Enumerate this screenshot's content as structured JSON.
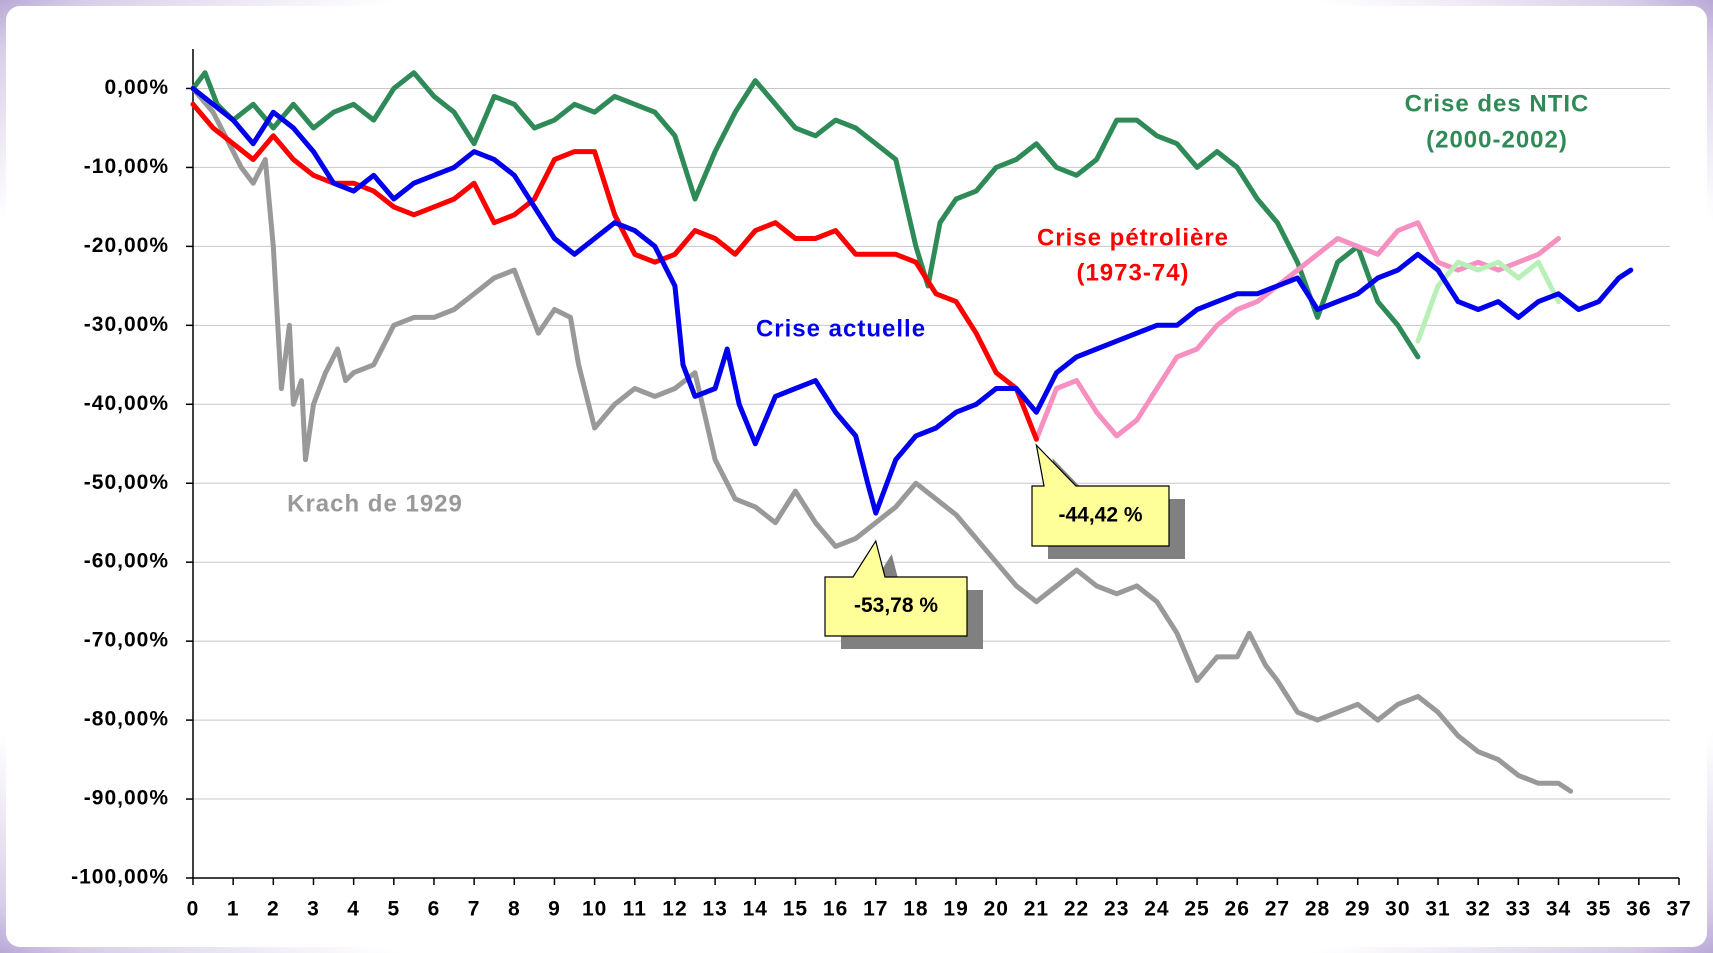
{
  "chart_data": {
    "type": "line",
    "xlim": [
      0,
      37
    ],
    "xticks": [
      0,
      1,
      2,
      3,
      4,
      5,
      6,
      7,
      8,
      9,
      10,
      11,
      12,
      13,
      14,
      15,
      16,
      17,
      18,
      19,
      20,
      21,
      22,
      23,
      24,
      25,
      26,
      27,
      28,
      29,
      30,
      31,
      32,
      33,
      34,
      35,
      36,
      37
    ],
    "ylim": [
      -100,
      5
    ],
    "yticks": [
      {
        "value": 0,
        "label": "0,00%"
      },
      {
        "value": -10,
        "label": "-10,00%"
      },
      {
        "value": -20,
        "label": "-20,00%"
      },
      {
        "value": -30,
        "label": "-30,00%"
      },
      {
        "value": -40,
        "label": "-40,00%"
      },
      {
        "value": -50,
        "label": "-50,00%"
      },
      {
        "value": -60,
        "label": "-60,00%"
      },
      {
        "value": -70,
        "label": "-70,00%"
      },
      {
        "value": -80,
        "label": "-80,00%"
      },
      {
        "value": -90,
        "label": "-90,00%"
      },
      {
        "value": -100,
        "label": "-100,00%"
      }
    ],
    "grid": true,
    "series": [
      {
        "name": "Krach de 1929",
        "color": "#999999",
        "x": [
          0,
          0.5,
          1,
          1.2,
          1.5,
          1.8,
          2,
          2.2,
          2.4,
          2.5,
          2.7,
          2.8,
          3,
          3.3,
          3.6,
          3.8,
          4,
          4.5,
          5,
          5.5,
          6,
          6.5,
          7,
          7.5,
          8,
          8.3,
          8.6,
          9,
          9.4,
          9.6,
          10,
          10.5,
          11,
          11.5,
          12,
          12.5,
          13,
          13.5,
          14,
          14.5,
          15,
          15.5,
          16,
          16.5,
          17,
          17.5,
          18,
          18.5,
          19,
          19.5,
          20,
          20.5,
          21,
          21.5,
          22,
          22.5,
          23,
          23.5,
          24,
          24.5,
          25,
          25.5,
          26,
          26.3,
          26.7,
          27,
          27.5,
          28,
          28.5,
          29,
          29.5,
          30,
          30.5,
          31,
          31.5,
          32,
          32.5,
          33,
          33.5,
          34,
          34.3
        ],
        "values": [
          0,
          -3,
          -8,
          -10,
          -12,
          -9,
          -20,
          -38,
          -30,
          -40,
          -37,
          -47,
          -40,
          -36,
          -33,
          -37,
          -36,
          -35,
          -30,
          -29,
          -29,
          -28,
          -26,
          -24,
          -23,
          -27,
          -31,
          -28,
          -29,
          -35,
          -43,
          -40,
          -38,
          -39,
          -38,
          -36,
          -47,
          -52,
          -53,
          -55,
          -51,
          -55,
          -58,
          -57,
          -55,
          -53,
          -50,
          -52,
          -54,
          -57,
          -60,
          -63,
          -65,
          -63,
          -61,
          -63,
          -64,
          -63,
          -65,
          -69,
          -75,
          -72,
          -72,
          -69,
          -73,
          -75,
          -79,
          -80,
          -79,
          -78,
          -80,
          -78,
          -77,
          -79,
          -82,
          -84,
          -85,
          -87,
          -88,
          -88,
          -89
        ]
      },
      {
        "name": [
          "Crise des NTIC",
          "(2000-2002)"
        ],
        "color": "#2e8b57",
        "x": [
          0,
          0.3,
          0.6,
          1,
          1.5,
          2,
          2.5,
          3,
          3.5,
          4,
          4.5,
          5,
          5.5,
          6,
          6.5,
          7,
          7.5,
          8,
          8.5,
          9,
          9.5,
          10,
          10.5,
          11,
          11.5,
          12,
          12.5,
          13,
          13.5,
          14,
          14.5,
          15,
          15.5,
          16,
          16.5,
          17,
          17.5,
          18,
          18.3,
          18.6,
          19,
          19.5,
          20,
          20.5,
          21,
          21.5,
          22,
          22.5,
          23,
          23.5,
          24,
          24.5,
          25,
          25.5,
          26,
          26.5,
          27,
          27.5,
          28,
          28.5,
          29,
          29.5,
          30,
          30.5
        ],
        "values": [
          0,
          2,
          -2,
          -4,
          -2,
          -5,
          -2,
          -5,
          -3,
          -2,
          -4,
          0,
          2,
          -1,
          -3,
          -7,
          -1,
          -2,
          -5,
          -4,
          -2,
          -3,
          -1,
          -2,
          -3,
          -6,
          -14,
          -8,
          -3,
          1,
          -2,
          -5,
          -6,
          -4,
          -5,
          -7,
          -9,
          -20,
          -25,
          -17,
          -14,
          -13,
          -10,
          -9,
          -7,
          -10,
          -11,
          -9,
          -4,
          -4,
          -6,
          -7,
          -10,
          -8,
          -10,
          -14,
          -17,
          -22,
          -29,
          -22,
          -20,
          -27,
          -30,
          -34
        ]
      },
      {
        "color": "#f590c0",
        "x": [
          21,
          21.5,
          22,
          22.5,
          23,
          23.5,
          24,
          24.5,
          25,
          25.5,
          26,
          26.5,
          27,
          27.5,
          28,
          28.5,
          29,
          29.5,
          30,
          30.5,
          31,
          31.5,
          32,
          32.5,
          33,
          33.5,
          34
        ],
        "values": [
          -44.42,
          -38,
          -37,
          -41,
          -44,
          -42,
          -38,
          -34,
          -33,
          -30,
          -28,
          -27,
          -25,
          -23,
          -21,
          -19,
          -20,
          -21,
          -18,
          -17,
          -22,
          -23,
          -22,
          -23,
          -22,
          -21,
          -19
        ]
      },
      {
        "color": "#b8f0b8",
        "x": [
          30.5,
          31,
          31.5,
          32,
          32.5,
          33,
          33.5,
          34
        ],
        "values": [
          -32,
          -25,
          -22,
          -23,
          -22,
          -24,
          -22,
          -27
        ]
      },
      {
        "name": [
          "Crise pétrolière",
          "(1973-74)"
        ],
        "color": "#ff0000",
        "x": [
          0,
          0.5,
          1,
          1.5,
          2,
          2.5,
          3,
          3.5,
          4,
          4.5,
          5,
          5.5,
          6,
          6.5,
          7,
          7.5,
          8,
          8.5,
          9,
          9.5,
          10,
          10.5,
          11,
          11.5,
          12,
          12.5,
          13,
          13.5,
          14,
          14.5,
          15,
          15.5,
          16,
          16.5,
          17,
          17.5,
          18,
          18.5,
          19,
          19.5,
          20,
          20.5,
          21
        ],
        "values": [
          -2,
          -5,
          -7,
          -9,
          -6,
          -9,
          -11,
          -12,
          -12,
          -13,
          -15,
          -16,
          -15,
          -14,
          -12,
          -17,
          -16,
          -14,
          -9,
          -8,
          -8,
          -16,
          -21,
          -22,
          -21,
          -18,
          -19,
          -21,
          -18,
          -17,
          -19,
          -19,
          -18,
          -21,
          -21,
          -21,
          -22,
          -26,
          -27,
          -31,
          -36,
          -38,
          -44.42
        ]
      },
      {
        "name": "Crise actuelle",
        "color": "#0000ee",
        "x": [
          0,
          0.5,
          1,
          1.5,
          2,
          2.5,
          3,
          3.5,
          4,
          4.5,
          5,
          5.5,
          6,
          6.5,
          7,
          7.5,
          8,
          8.5,
          9,
          9.5,
          10,
          10.5,
          11,
          11.5,
          12,
          12.2,
          12.5,
          13,
          13.3,
          13.6,
          14,
          14.5,
          15,
          15.5,
          16,
          16.5,
          16.8,
          17,
          17.5,
          18,
          18.5,
          19,
          19.5,
          20,
          20.5,
          21,
          21.5,
          22,
          22.5,
          23,
          23.5,
          24,
          24.5,
          25,
          25.5,
          26,
          26.5,
          27,
          27.5,
          28,
          28.5,
          29,
          29.5,
          30,
          30.5,
          31,
          31.5,
          32,
          32.5,
          33,
          33.5,
          34,
          34.5,
          35,
          35.5,
          35.8
        ],
        "values": [
          0,
          -2,
          -4,
          -7,
          -3,
          -5,
          -8,
          -12,
          -13,
          -11,
          -14,
          -12,
          -11,
          -10,
          -8,
          -9,
          -11,
          -15,
          -19,
          -21,
          -19,
          -17,
          -18,
          -20,
          -25,
          -35,
          -39,
          -38,
          -33,
          -40,
          -45,
          -39,
          -38,
          -37,
          -41,
          -44,
          -50,
          -53.78,
          -47,
          -44,
          -43,
          -41,
          -40,
          -38,
          -38,
          -41,
          -36,
          -34,
          -33,
          -32,
          -31,
          -30,
          -30,
          -28,
          -27,
          -26,
          -26,
          -25,
          -24,
          -28,
          -27,
          -26,
          -24,
          -23,
          -21,
          -23,
          -27,
          -28,
          -27,
          -29,
          -27,
          -26,
          -28,
          -27,
          -24,
          -23
        ]
      }
    ],
    "annotations": [
      "-53,78 %",
      "-44,42 %"
    ]
  }
}
